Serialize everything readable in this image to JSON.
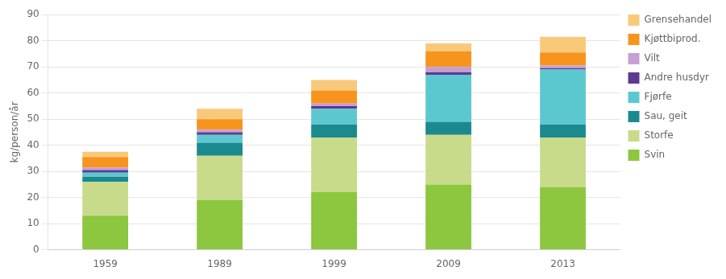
{
  "chart_data": {
    "type": "bar",
    "stacked": true,
    "categories": [
      "1959",
      "1989",
      "1999",
      "2009",
      "2013"
    ],
    "series": [
      {
        "name": "Svin",
        "color": "#8dc63f",
        "values": [
          13.0,
          19.0,
          22.0,
          25.0,
          24.0
        ]
      },
      {
        "name": "Storfe",
        "color": "#c8db8b",
        "values": [
          13.0,
          17.0,
          21.0,
          19.0,
          19.0
        ]
      },
      {
        "name": "Sau, geit",
        "color": "#1b8a8f",
        "values": [
          2.0,
          5.0,
          5.0,
          5.0,
          5.0
        ]
      },
      {
        "name": "Fjørfe",
        "color": "#5bc8d0",
        "values": [
          1.5,
          3.0,
          6.0,
          18.0,
          21.0
        ]
      },
      {
        "name": "Andre husdyr",
        "color": "#5b3a8f",
        "values": [
          1.0,
          1.0,
          1.0,
          1.0,
          0.5
        ]
      },
      {
        "name": "Vilt",
        "color": "#c4a0d4",
        "values": [
          1.0,
          1.0,
          1.0,
          2.0,
          1.0
        ]
      },
      {
        "name": "Kjøttbiprod.",
        "color": "#f7941d",
        "values": [
          4.0,
          4.0,
          5.0,
          6.0,
          5.0
        ]
      },
      {
        "name": "Grensehandel",
        "color": "#f9c97a",
        "values": [
          2.0,
          4.0,
          4.0,
          3.0,
          6.0
        ]
      }
    ],
    "ylabel": "kg/person/år",
    "ylim": [
      0,
      90
    ],
    "yticks": [
      0,
      10,
      20,
      30,
      40,
      50,
      60,
      70,
      80,
      90
    ],
    "grid": true,
    "legend": "right"
  }
}
